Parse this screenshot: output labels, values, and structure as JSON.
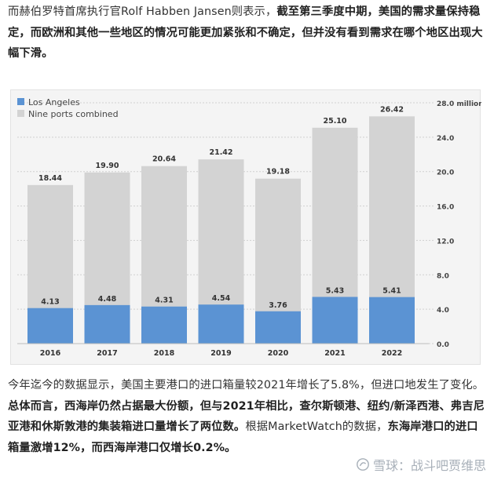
{
  "article": {
    "para_top": [
      {
        "text": "而赫伯罗特首席执行官Rolf Habben Jansen则表示，",
        "bold": false
      },
      {
        "text": "截至第三季度中期，美国的需求量保持稳定，而欧洲和其他一些地区的情况可能更加紧张和不确定，但并没有看到需求在哪个地区出现大幅下滑。",
        "bold": true
      }
    ],
    "para_bottom": [
      {
        "text": "今年迄今的数据显示，美国主要港口的进口箱量较2021年增长了5.8%，但进口地发生了变化。",
        "bold": false
      },
      {
        "text": "总体而言，西海岸仍然占据最大份额，但与2021年相比，查尔斯顿港、纽约/新泽西港、弗吉尼亚港和休斯敦港的集装箱进口量增长了两位数。",
        "bold": true
      },
      {
        "text": "根据MarketWatch的数据，",
        "bold": false
      },
      {
        "text": "东海岸港口的进口箱量激增12%，而西海岸港口仅增长0.2%。",
        "bold": true
      }
    ]
  },
  "watermark": {
    "text": "雪球：战斗吧贾维思",
    "icon": "snowball-icon"
  },
  "chart_data": {
    "type": "bar",
    "stacked": false,
    "overlaid": true,
    "categories": [
      "2016",
      "2017",
      "2018",
      "2019",
      "2020",
      "2021",
      "2022"
    ],
    "series": [
      {
        "name": "Los Angeles",
        "color": "#5b93d3",
        "values": [
          4.13,
          4.48,
          4.31,
          4.54,
          3.76,
          5.43,
          5.41
        ]
      },
      {
        "name": "Nine ports combined",
        "color": "#d3d3d3",
        "values": [
          18.44,
          19.9,
          20.64,
          21.42,
          19.18,
          25.1,
          26.42
        ]
      }
    ],
    "value_labels": {
      "Los Angeles": [
        "4.13",
        "4.48",
        "4.31",
        "4.54",
        "3.76",
        "5.43",
        "5.41"
      ],
      "Nine ports combined": [
        "18.44",
        "19.90",
        "20.64",
        "21.42",
        "19.18",
        "25.10",
        "26.42"
      ]
    },
    "y_ticks": [
      "0.0",
      "4.0",
      "8.0",
      "12.0",
      "16.0",
      "20.0",
      "24.0",
      "28.0 million"
    ],
    "y_tick_values": [
      0,
      4,
      8,
      12,
      16,
      20,
      24,
      28
    ],
    "ylim": [
      0,
      28
    ],
    "legend_position": "top-left",
    "grid": true
  }
}
